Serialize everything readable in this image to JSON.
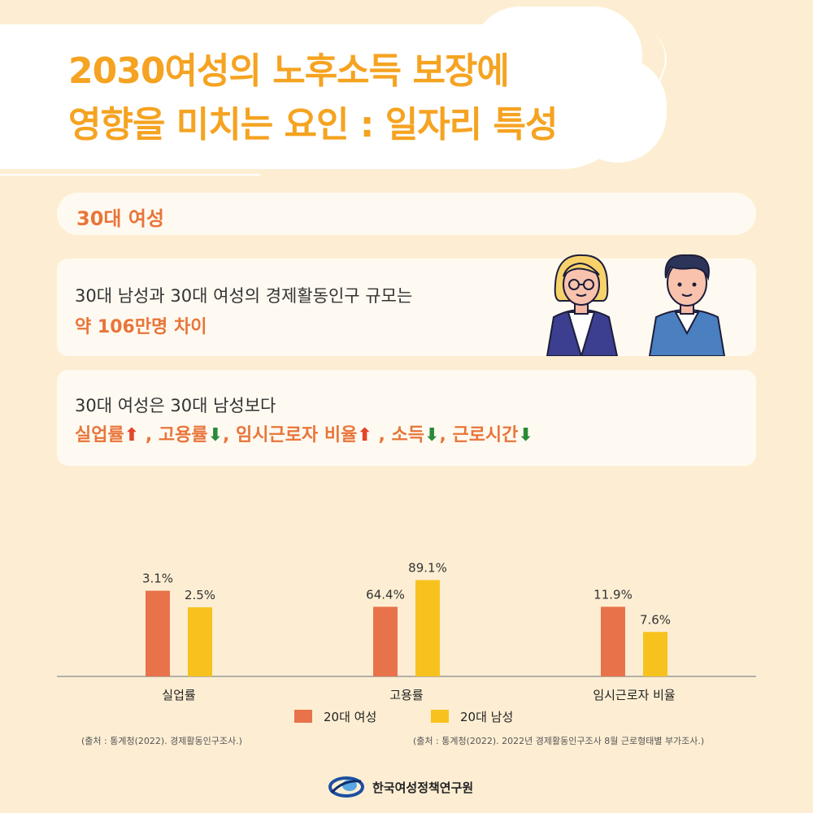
{
  "title": {
    "line1": "2030여성의 노후소득 보장에",
    "line2": "영향을 미치는 요인 : 일자리 특성"
  },
  "section_label": "30대 여성",
  "card1": {
    "text": "30대 남성과 30대 여성의 경제활동인구 규모는",
    "highlight": "약 106만명 차이"
  },
  "card2": {
    "text": "30대 여성은 30대 남성보다",
    "items": [
      {
        "label": "실업률",
        "dir": "up"
      },
      {
        "label": ", 고용률",
        "dir": "down"
      },
      {
        "label": ", 임시근로자 비율",
        "dir": "up"
      },
      {
        "label": ", 소득",
        "dir": "down"
      },
      {
        "label": ", 근로시간",
        "dir": "down"
      }
    ]
  },
  "chart_data": {
    "type": "bar",
    "categories": [
      "실업률",
      "고용률",
      "임시근로자 비율"
    ],
    "series": [
      {
        "name": "20대 여성",
        "values": [
          3.1,
          64.4,
          11.9
        ],
        "labels": [
          "3.1%",
          "64.4%",
          "11.9%"
        ]
      },
      {
        "name": "20대 남성",
        "values": [
          2.5,
          89.1,
          7.6
        ],
        "labels": [
          "2.5%",
          "89.1%",
          "7.6%"
        ]
      }
    ],
    "colors": [
      "#e8734a",
      "#f7c21d"
    ],
    "axis_color": "#9a9a9a",
    "legend_position": "bottom"
  },
  "sources": {
    "left": "(출처 : 통계청(2022). 경제활동인구조사.)",
    "right": "(출처 : 통계청(2022). 2022년 경제활동인구조사 8월 근로형태별 부가조사.)"
  },
  "footer": {
    "org": "한국여성정책연구원"
  },
  "icons": {
    "up": "⬆",
    "down": "⬇"
  }
}
